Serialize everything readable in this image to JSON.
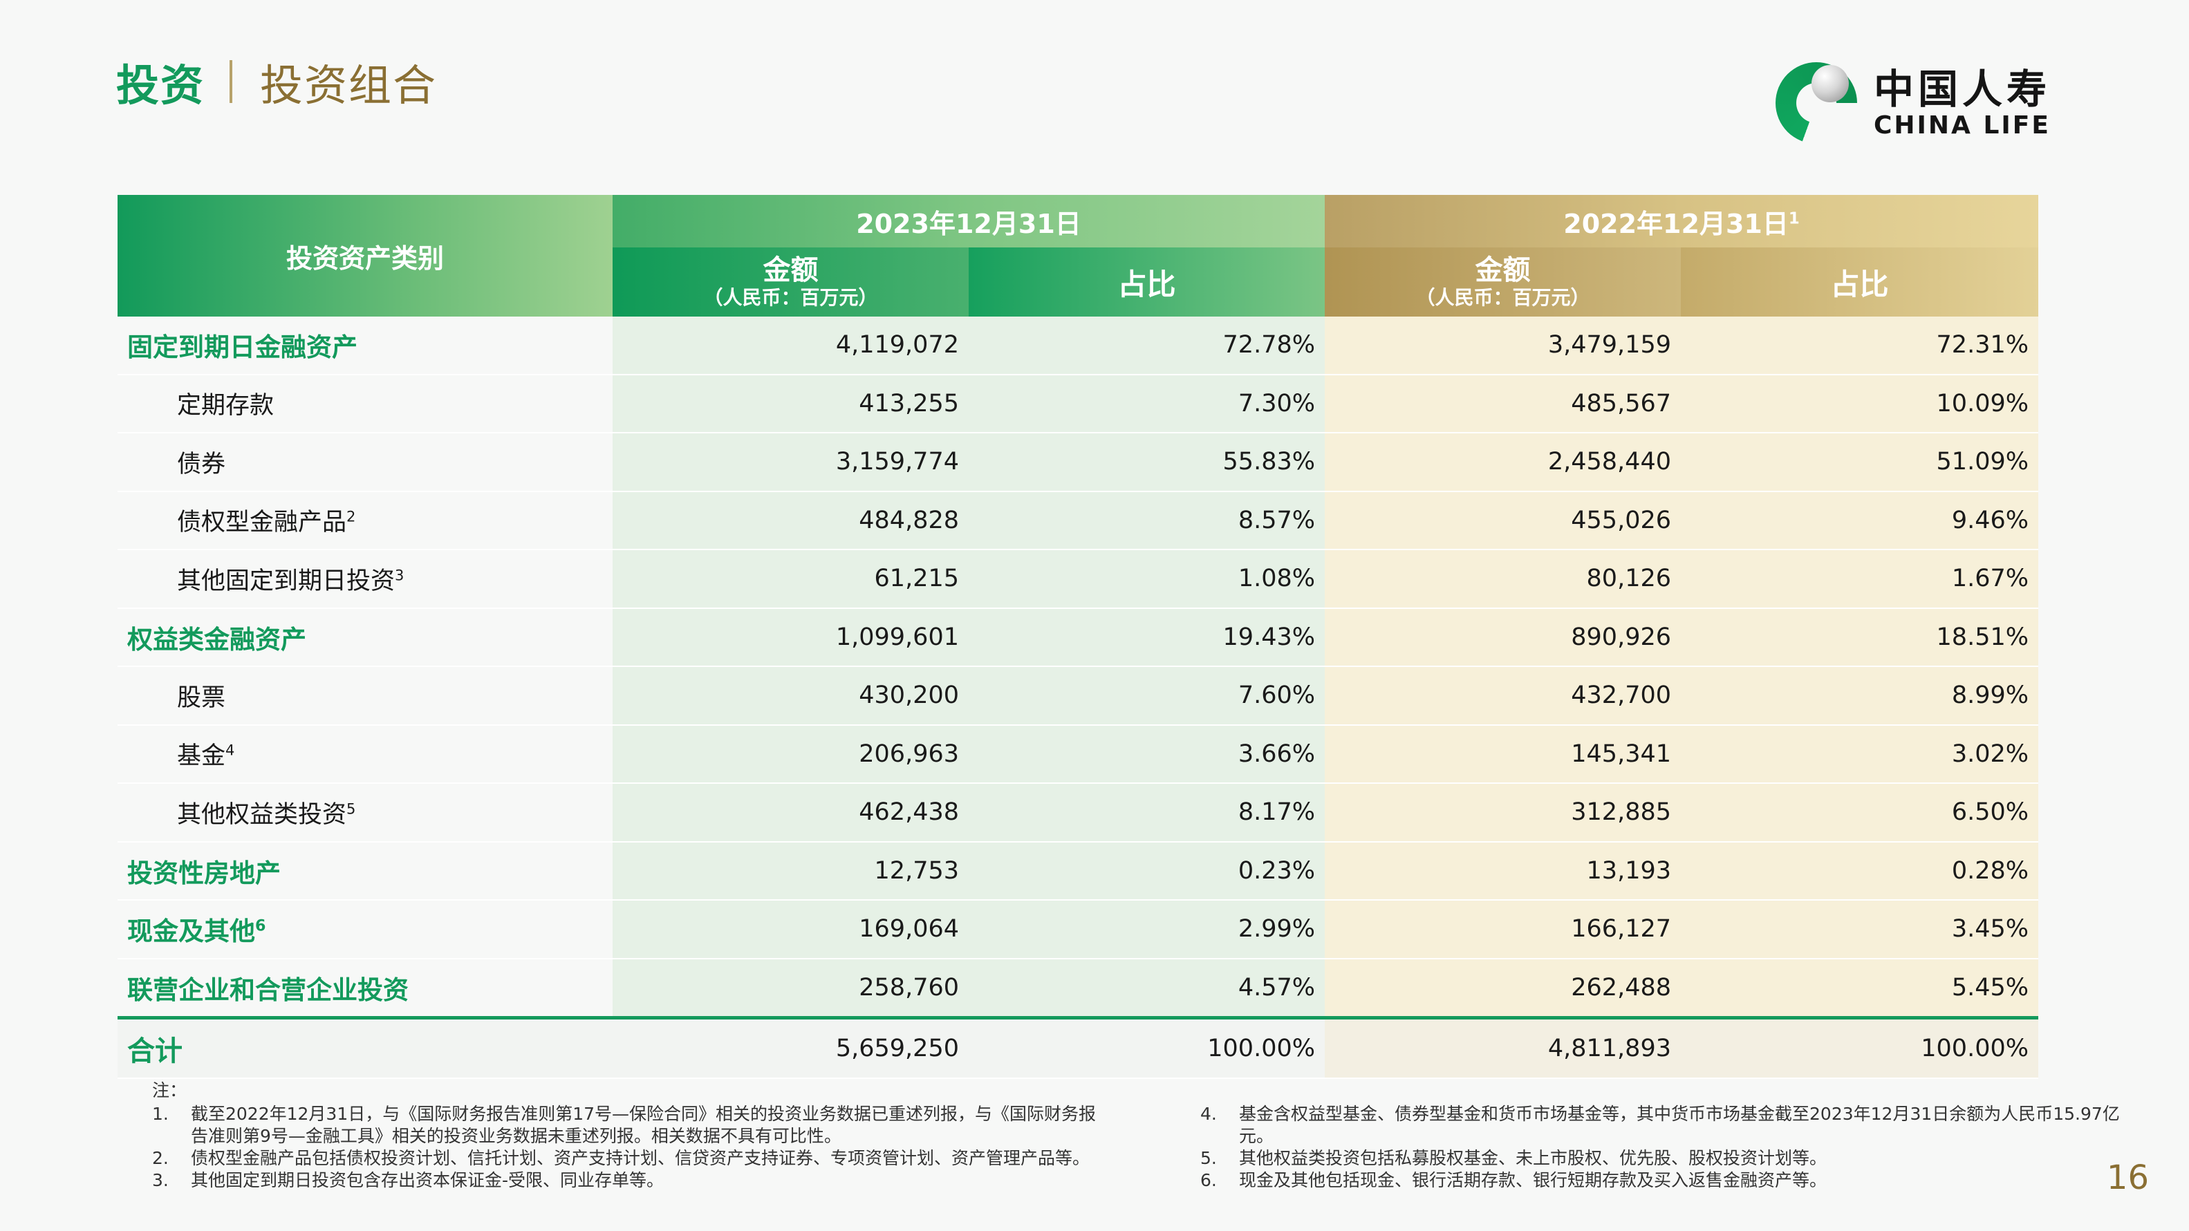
{
  "header": {
    "title_main": "投资",
    "title_sub": "投资组合"
  },
  "logo": {
    "cn": "中国人寿",
    "en": "CHINA LIFE"
  },
  "table": {
    "col_category": "投资资产类别",
    "period_2023": "2023年12月31日",
    "period_2022": "2022年12月31日",
    "period_2022_sup": "1",
    "amount_label": "金额",
    "amount_unit": "（人民币：百万元）",
    "pct_label": "占比",
    "rows": [
      {
        "label": "固定到期日金融资产",
        "sup": "",
        "level": "main",
        "a23": "4,119,072",
        "p23": "72.78%",
        "a22": "3,479,159",
        "p22": "72.31%"
      },
      {
        "label": "定期存款",
        "sup": "",
        "level": "sub",
        "a23": "413,255",
        "p23": "7.30%",
        "a22": "485,567",
        "p22": "10.09%"
      },
      {
        "label": "债券",
        "sup": "",
        "level": "sub",
        "a23": "3,159,774",
        "p23": "55.83%",
        "a22": "2,458,440",
        "p22": "51.09%"
      },
      {
        "label": "债权型金融产品",
        "sup": "2",
        "level": "sub",
        "a23": "484,828",
        "p23": "8.57%",
        "a22": "455,026",
        "p22": "9.46%"
      },
      {
        "label": "其他固定到期日投资",
        "sup": "3",
        "level": "sub",
        "a23": "61,215",
        "p23": "1.08%",
        "a22": "80,126",
        "p22": "1.67%"
      },
      {
        "label": "权益类金融资产",
        "sup": "",
        "level": "main",
        "a23": "1,099,601",
        "p23": "19.43%",
        "a22": "890,926",
        "p22": "18.51%"
      },
      {
        "label": "股票",
        "sup": "",
        "level": "sub",
        "a23": "430,200",
        "p23": "7.60%",
        "a22": "432,700",
        "p22": "8.99%"
      },
      {
        "label": "基金",
        "sup": "4",
        "level": "sub",
        "a23": "206,963",
        "p23": "3.66%",
        "a22": "145,341",
        "p22": "3.02%"
      },
      {
        "label": "其他权益类投资",
        "sup": "5",
        "level": "sub",
        "a23": "462,438",
        "p23": "8.17%",
        "a22": "312,885",
        "p22": "6.50%"
      },
      {
        "label": "投资性房地产",
        "sup": "",
        "level": "main",
        "a23": "12,753",
        "p23": "0.23%",
        "a22": "13,193",
        "p22": "0.28%"
      },
      {
        "label": "现金及其他",
        "sup": "6",
        "level": "main",
        "a23": "169,064",
        "p23": "2.99%",
        "a22": "166,127",
        "p22": "3.45%"
      },
      {
        "label": "联营企业和合营企业投资",
        "sup": "",
        "level": "main",
        "a23": "258,760",
        "p23": "4.57%",
        "a22": "262,488",
        "p22": "5.45%"
      }
    ],
    "total": {
      "label": "合计",
      "a23": "5,659,250",
      "p23": "100.00%",
      "a22": "4,811,893",
      "p22": "100.00%"
    }
  },
  "notes": {
    "label": "注：",
    "items": [
      {
        "num": "1.",
        "text": "截至2022年12月31日，与《国际财务报告准则第17号—保险合同》相关的投资业务数据已重述列报，与《国际财务报告准则第9号—金融工具》相关的投资业务数据未重述列报。相关数据不具有可比性。"
      },
      {
        "num": "2.",
        "text": "债权型金融产品包括债权投资计划、信托计划、资产支持计划、信贷资产支持证券、专项资管计划、资产管理产品等。"
      },
      {
        "num": "3.",
        "text": "其他固定到期日投资包含存出资本保证金-受限、同业存单等。"
      },
      {
        "num": "4.",
        "text": "基金含权益型基金、债券型基金和货币市场基金等，其中货币市场基金截至2023年12月31日余额为人民币15.97亿元。"
      },
      {
        "num": "5.",
        "text": "其他权益类投资包括私募股权基金、未上市股权、优先股、股权投资计划等。"
      },
      {
        "num": "6.",
        "text": "现金及其他包括现金、银行活期存款、银行短期存款及买入返售金融资产等。"
      }
    ]
  },
  "page_number": "16",
  "colors": {
    "green_primary": "#139a5c",
    "gold_primary": "#b9a065"
  }
}
